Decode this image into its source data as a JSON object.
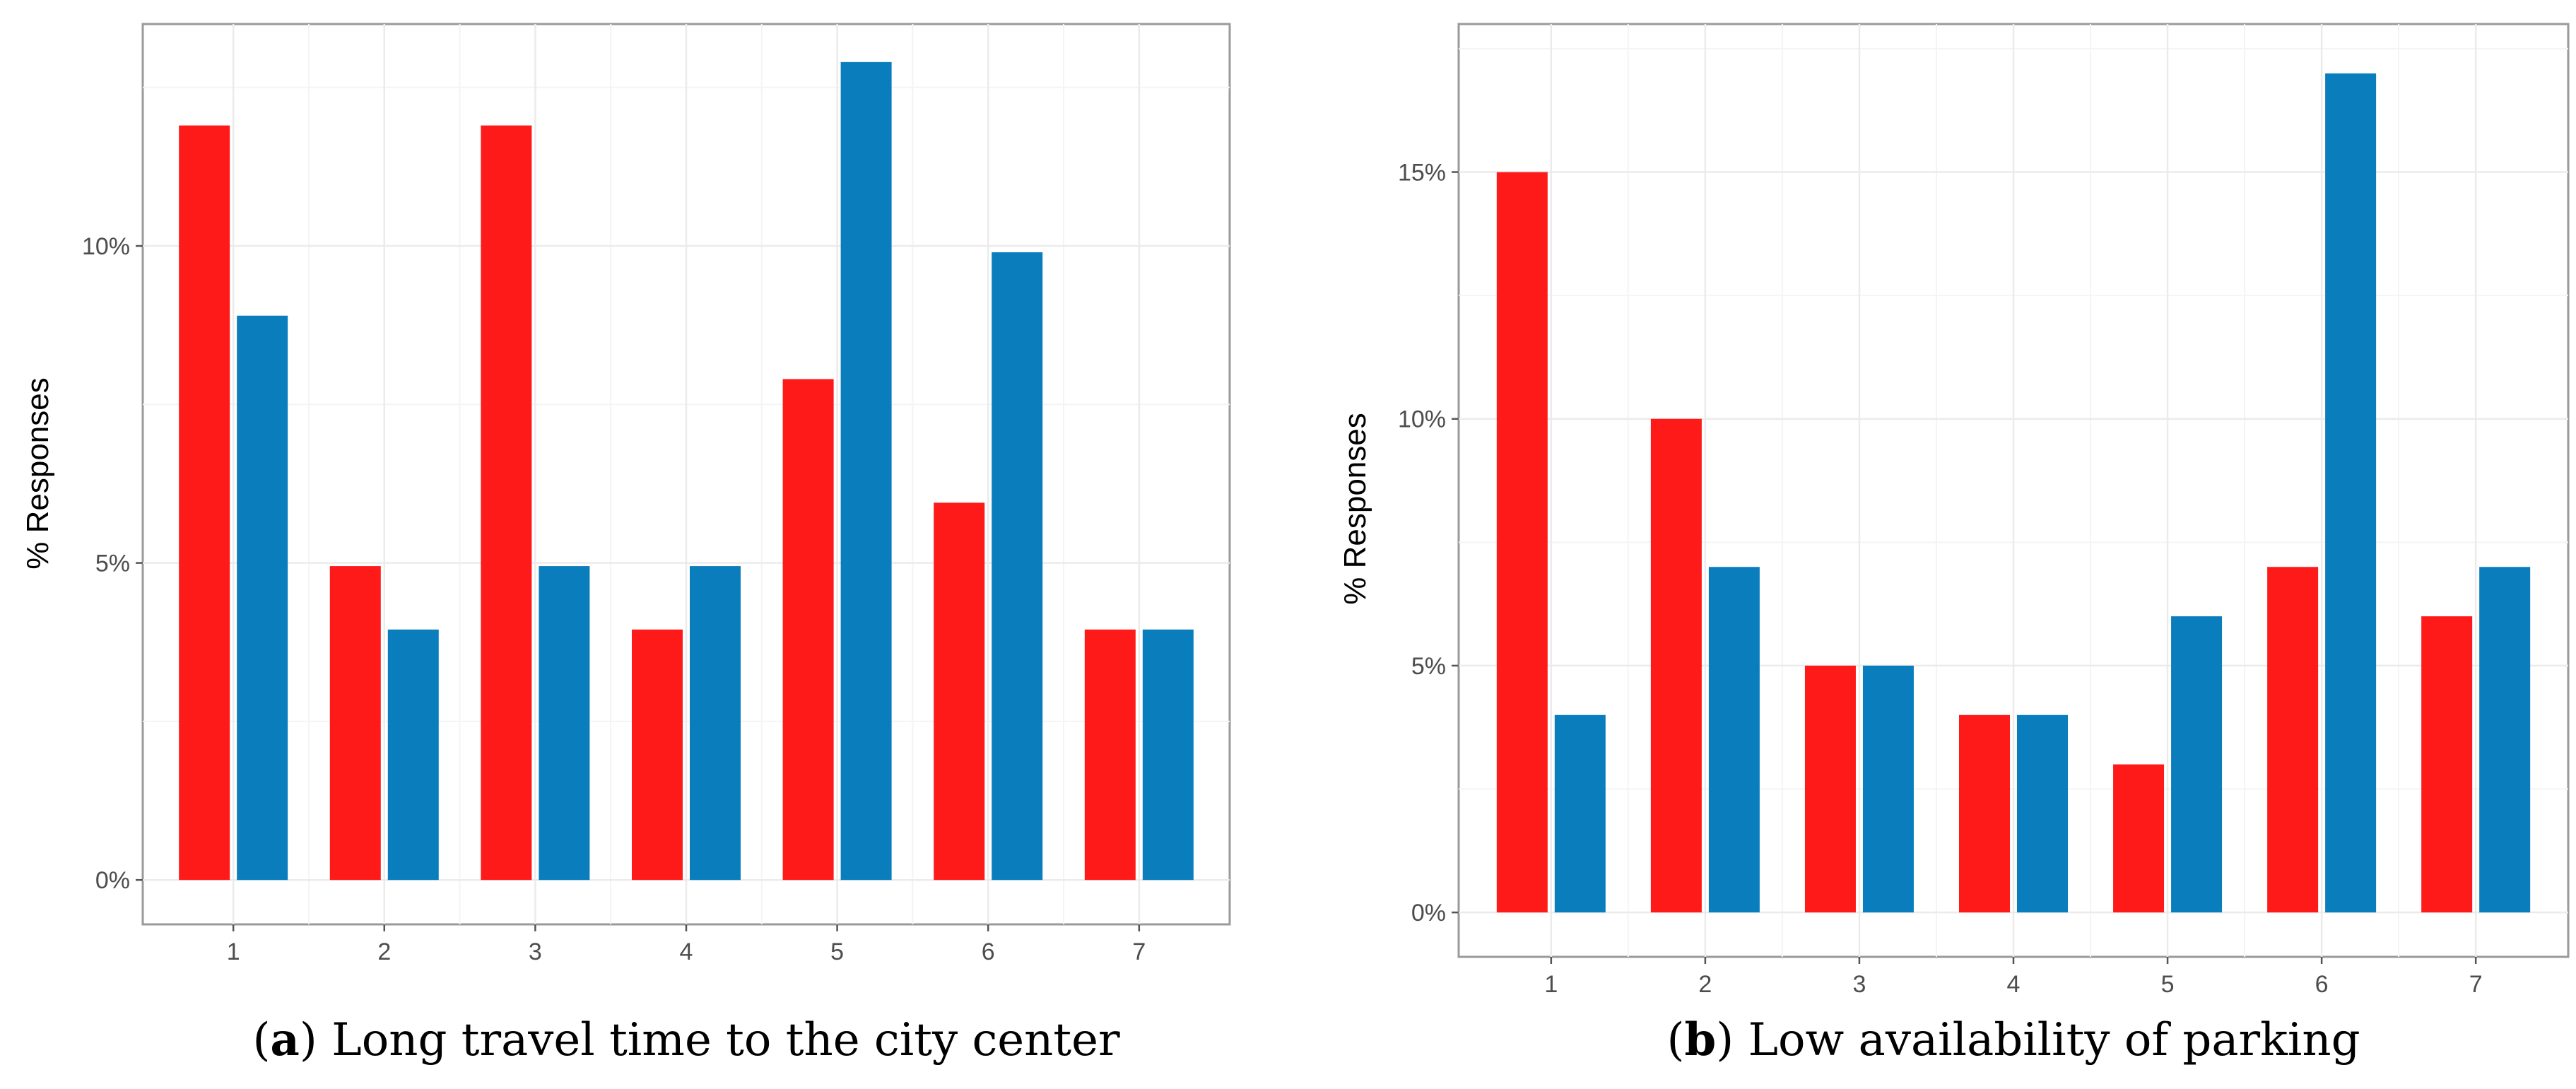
{
  "chart_data": [
    {
      "type": "bar",
      "panel_letter": "a",
      "caption_text": "Long travel time to the city center",
      "ylabel": "% Responses",
      "xlabel": "",
      "categories": [
        "1",
        "2",
        "3",
        "4",
        "5",
        "6",
        "7"
      ],
      "series": [
        {
          "name": "red series",
          "color": "#ff1a1a",
          "values": [
            11.9,
            4.95,
            11.9,
            3.95,
            7.9,
            5.95,
            3.95
          ]
        },
        {
          "name": "blue series",
          "color": "#0a7dbd",
          "values": [
            8.9,
            3.95,
            4.95,
            4.95,
            12.9,
            9.9,
            3.95
          ]
        }
      ],
      "ylim": [
        -0.7,
        13.5
      ],
      "yticks": [
        0,
        5,
        10
      ],
      "ytick_labels": [
        "0%",
        "5%",
        "10%"
      ],
      "grid": true
    },
    {
      "type": "bar",
      "panel_letter": "b",
      "caption_text": "Low availability of parking",
      "ylabel": "% Responses",
      "xlabel": "",
      "categories": [
        "1",
        "2",
        "3",
        "4",
        "5",
        "6",
        "7"
      ],
      "series": [
        {
          "name": "red series",
          "color": "#ff1a1a",
          "values": [
            15,
            10,
            5,
            4,
            3,
            7,
            6
          ]
        },
        {
          "name": "blue series",
          "color": "#0a7dbd",
          "values": [
            4,
            7,
            5,
            4,
            6,
            17,
            7
          ]
        }
      ],
      "ylim": [
        -0.9,
        18
      ],
      "yticks": [
        0,
        5,
        10,
        15
      ],
      "ytick_labels": [
        "0%",
        "5%",
        "10%",
        "15%"
      ],
      "grid": true
    }
  ]
}
